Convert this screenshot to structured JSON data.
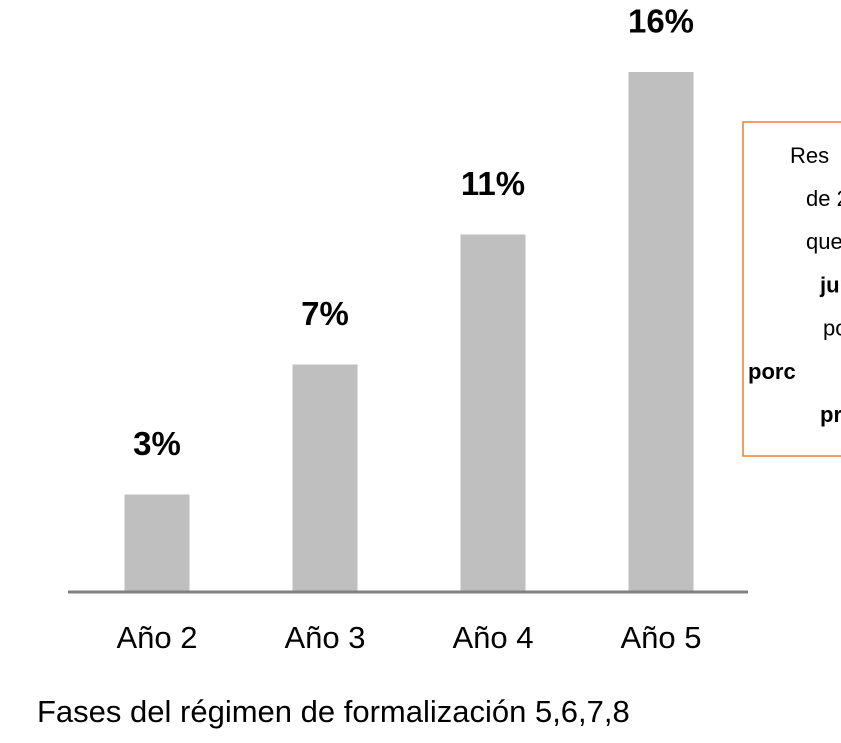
{
  "chart_data": {
    "type": "bar",
    "categories": [
      "Año 2",
      "Año 3",
      "Año 4",
      "Año 5"
    ],
    "values": [
      3,
      7,
      11,
      16
    ],
    "value_labels": [
      "3%",
      "7%",
      "11%",
      "16%"
    ],
    "color": "#bfbfbf",
    "ylim": [
      0,
      16
    ],
    "x_label": "Fases del régimen de formalización 5,6,7,8",
    "annotation": [
      "Res",
      "de 2",
      "que",
      "jur",
      "po",
      "porc",
      "pr"
    ]
  }
}
